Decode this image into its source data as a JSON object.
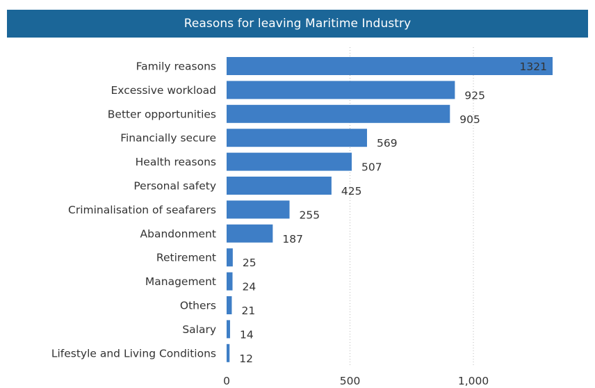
{
  "chart_data": {
    "type": "bar",
    "orientation": "horizontal",
    "title": "Reasons for leaving Maritime Industry",
    "categories": [
      "Family reasons",
      "Excessive workload",
      "Better opportunities",
      "Financially secure",
      "Health reasons",
      "Personal safety",
      "Criminalisation of seafarers",
      "Abandonment",
      "Retirement",
      "Management",
      "Others",
      "Salary",
      "Lifestyle and Living Conditions"
    ],
    "values": [
      1321,
      925,
      905,
      569,
      507,
      425,
      255,
      187,
      25,
      24,
      21,
      14,
      12
    ],
    "value_labels": [
      "1321",
      "925",
      "905",
      "569",
      "507",
      "425",
      "255",
      "187",
      "25",
      "24",
      "21",
      "14",
      "12"
    ],
    "xlim": [
      0,
      1321
    ],
    "x_ticks": [
      0,
      500,
      1000
    ],
    "x_tick_labels": [
      "0",
      "500",
      "1,000"
    ],
    "grid": "vertical-dotted",
    "bar_color": "#3e7ec6",
    "title_bar_color": "#1b6698",
    "legend": "none"
  }
}
